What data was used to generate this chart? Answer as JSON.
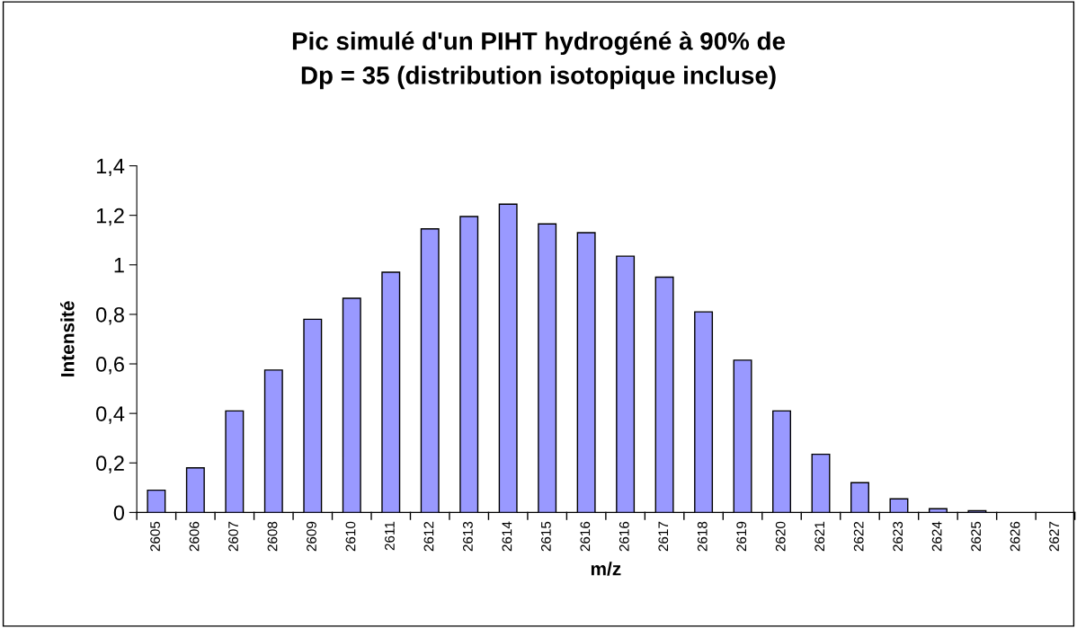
{
  "chart_data": {
    "type": "bar",
    "title": "Pic simulé d'un PIHT hydrogéné à 90% de\nDp = 35 (distribution isotopique incluse)",
    "xlabel": "m/z",
    "ylabel": "Intensité",
    "categories": [
      "2605",
      "2606",
      "2607",
      "2608",
      "2609",
      "2610",
      "2611",
      "2612",
      "2613",
      "2614",
      "2615",
      "2616",
      "2616",
      "2617",
      "2618",
      "2619",
      "2620",
      "2621",
      "2622",
      "2623",
      "2624",
      "2625",
      "2626",
      "2627"
    ],
    "values": [
      0.09,
      0.18,
      0.41,
      0.575,
      0.78,
      0.865,
      0.97,
      1.145,
      1.195,
      1.245,
      1.165,
      1.13,
      1.035,
      0.95,
      0.81,
      0.615,
      0.41,
      0.235,
      0.12,
      0.055,
      0.015,
      0.007,
      null,
      null
    ],
    "color": "#9999ff",
    "ylim": [
      0,
      1.4
    ],
    "yticks": [
      0,
      {
        "value": 0.2,
        "label": "0,2"
      },
      {
        "value": 0.4,
        "label": "0,4"
      },
      {
        "value": 0.6,
        "label": "0,6"
      },
      {
        "value": 0.8,
        "label": "0,8"
      },
      1,
      {
        "value": 1.2,
        "label": "1,2"
      },
      {
        "value": 1.4,
        "label": "1,4"
      }
    ],
    "grid": false,
    "legend": false
  }
}
